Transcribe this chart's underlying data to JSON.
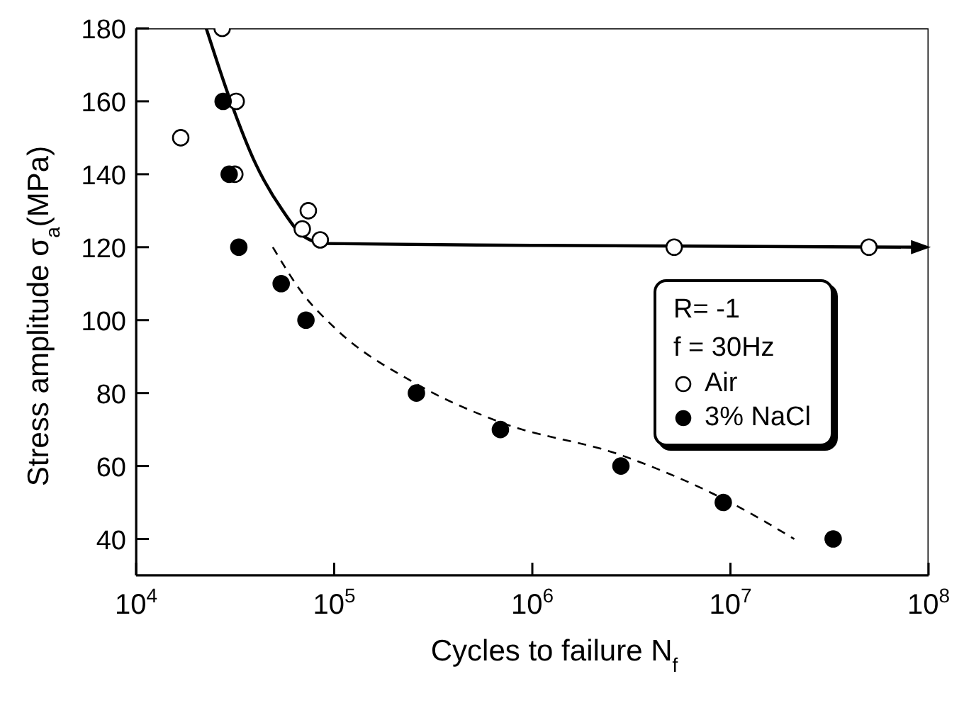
{
  "chart_data": {
    "type": "scatter",
    "xlabel": "Cycles to failure N$_{f}$",
    "ylabel": "Stress amplitude σ$_{a}$(MPa)",
    "log": "x",
    "xlim": [
      10000,
      100000000
    ],
    "xticks": [
      {
        "value": 10000,
        "label": "10$^{4}$"
      },
      {
        "value": 100000,
        "label": "10$^{5}$"
      },
      {
        "value": 1000000,
        "label": "10$^{6}$"
      },
      {
        "value": 10000000,
        "label": "10$^{7}$"
      },
      {
        "value": 100000000,
        "label": "10$^{8}$"
      }
    ],
    "ylim": [
      30,
      180
    ],
    "yticks": [
      40,
      60,
      80,
      100,
      120,
      140,
      160,
      180
    ],
    "legend": "right",
    "annotations": [
      "R= -1",
      "f = 30Hz"
    ],
    "series": [
      {
        "name": "Air",
        "color": "#ffffff",
        "marker": "circle",
        "x": [
          16800,
          27200,
          32000,
          31500,
          69000,
          74000,
          85000,
          5200000,
          50000000
        ],
        "values": [
          150,
          180,
          160,
          140,
          125,
          130,
          122,
          120,
          120
        ]
      },
      {
        "name": "3% NaCl",
        "color": "#000000",
        "marker": "circle",
        "x": [
          27500,
          29500,
          33000,
          54000,
          72000,
          260000,
          690000,
          2800000,
          9200000,
          33000000
        ],
        "values": [
          160,
          140,
          120,
          110,
          100,
          80,
          70,
          60,
          50,
          40
        ]
      },
      {
        "type": "line",
        "color": "#000000",
        "line_style": "solid",
        "marker": "none",
        "x": [
          22600,
          30000,
          40000,
          55000,
          70000,
          90000,
          1000000,
          90000000
        ],
        "values": [
          180,
          160,
          143,
          130,
          123,
          121,
          120.5,
          120
        ]
      },
      {
        "type": "line",
        "color": "#000000",
        "line_style": "dashed",
        "marker": "none",
        "x": [
          49000,
          70000,
          100000,
          260000,
          690000,
          2800000,
          10000000,
          21000000
        ],
        "values": [
          120,
          107,
          98,
          82.5,
          72,
          63,
          50,
          40
        ]
      }
    ]
  }
}
